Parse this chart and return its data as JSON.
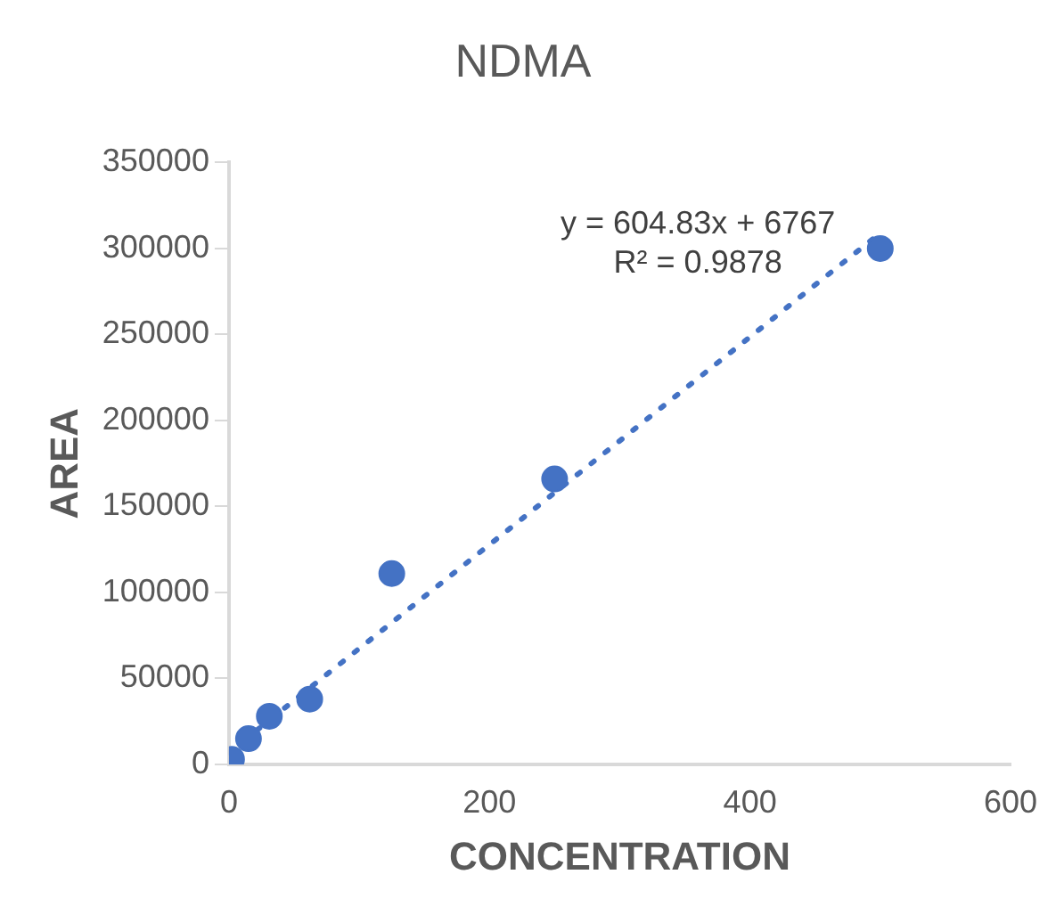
{
  "chart_data": {
    "type": "scatter",
    "title": "NDMA",
    "xlabel": "CONCENTRATION",
    "ylabel": "AREA",
    "xlim": [
      0,
      600
    ],
    "xticks": [
      0,
      200,
      400,
      600
    ],
    "ylim": [
      0,
      350000
    ],
    "yticks": [
      0,
      50000,
      100000,
      150000,
      200000,
      250000,
      300000,
      350000
    ],
    "grid": false,
    "legend": false,
    "marker": "circle",
    "series": [
      {
        "color": "#4472c4",
        "x": [
          2,
          15,
          31,
          62,
          125,
          250,
          500
        ],
        "values": [
          3000,
          15000,
          28000,
          38000,
          111000,
          166000,
          300000
        ]
      },
      {
        "type": "line",
        "line_style": "dotted",
        "marker": "none",
        "color": "#4472c4",
        "x": [
          0,
          500
        ],
        "values": [
          7000,
          309000
        ]
      }
    ],
    "annotations": [
      "y = 604.83x + 6767",
      "R² = 0.9878"
    ]
  }
}
